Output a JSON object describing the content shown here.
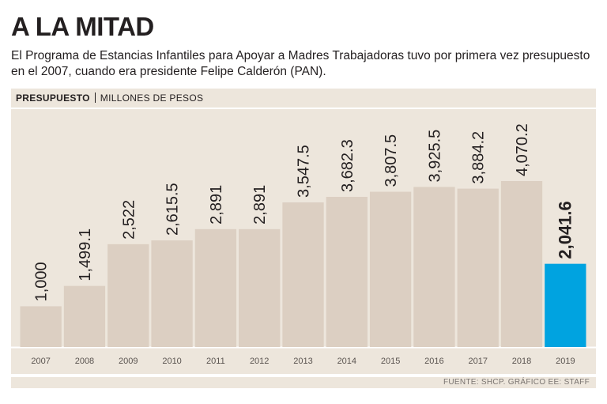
{
  "header": {
    "title": "A LA MITAD",
    "subtitle": "El Programa de Estancias Infantiles para Apoyar a Madres Trabajadoras tuvo por primera vez presupuesto en el 2007, cuando era presidente Felipe Calderón (PAN)."
  },
  "section": {
    "label_strong": "PRESUPUESTO",
    "label_light": "MILLONES DE PESOS"
  },
  "source": "FUENTE: SHCP. GRÁFICO EE: STAFF",
  "colors": {
    "bar": "#dccfc2",
    "highlight": "#00a3e0",
    "panel": "#ede6dc"
  },
  "chart_data": {
    "type": "bar",
    "title": "PRESUPUESTO",
    "ylabel": "MILLONES DE PESOS",
    "xlabel": "",
    "categories": [
      "2007",
      "2008",
      "2009",
      "2010",
      "2011",
      "2012",
      "2013",
      "2014",
      "2015",
      "2016",
      "2017",
      "2018",
      "2019"
    ],
    "values": [
      1000,
      1499.1,
      2522,
      2615.5,
      2891,
      2891,
      3547.5,
      3682.3,
      3807.5,
      3925.5,
      3884.2,
      4070.2,
      2041.6
    ],
    "labels": [
      "1,000",
      "1,499.1",
      "2,522",
      "2,615.5",
      "2,891",
      "2,891",
      "3,547.5",
      "3,682.3",
      "3,807.5",
      "3,925.5",
      "3,884.2",
      "4,070.2",
      "2,041.6"
    ],
    "highlight_index": 12,
    "ylim": [
      0,
      4070.2
    ]
  }
}
